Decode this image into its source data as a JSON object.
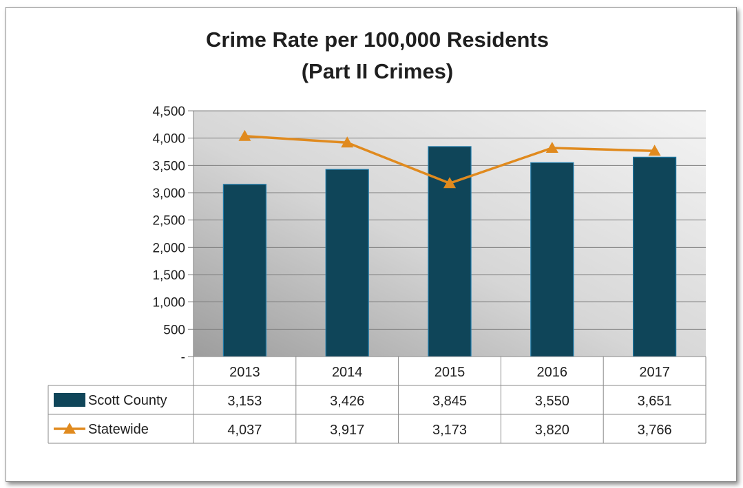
{
  "chart_data": {
    "type": "bar",
    "title_lines": [
      "Crime Rate per 100,000 Residents",
      "(Part II Crimes)"
    ],
    "categories": [
      "2013",
      "2014",
      "2015",
      "2016",
      "2017"
    ],
    "series": [
      {
        "name": "Scott County",
        "kind": "bar",
        "color": "#0f4559",
        "values": [
          3153,
          3426,
          3845,
          3550,
          3651
        ]
      },
      {
        "name": "Statewide",
        "kind": "line",
        "marker": "triangle",
        "color": "#e08a1e",
        "values": [
          4037,
          3917,
          3173,
          3820,
          3766
        ]
      }
    ],
    "ylim": [
      0,
      4500
    ],
    "yticks": [
      0,
      500,
      1000,
      1500,
      2000,
      2500,
      3000,
      3500,
      4000,
      4500
    ],
    "ytick_labels": [
      "-",
      "500",
      "1,000",
      "1,500",
      "2,000",
      "2,500",
      "3,000",
      "3,500",
      "4,000",
      "4,500"
    ],
    "data_table": {
      "rows": [
        {
          "label": "Scott County",
          "cells": [
            "3,153",
            "3,426",
            "3,845",
            "3,550",
            "3,651"
          ]
        },
        {
          "label": "Statewide",
          "cells": [
            "4,037",
            "3,917",
            "3,173",
            "3,820",
            "3,766"
          ]
        }
      ]
    },
    "grid": true,
    "xlabel": "",
    "ylabel": ""
  }
}
